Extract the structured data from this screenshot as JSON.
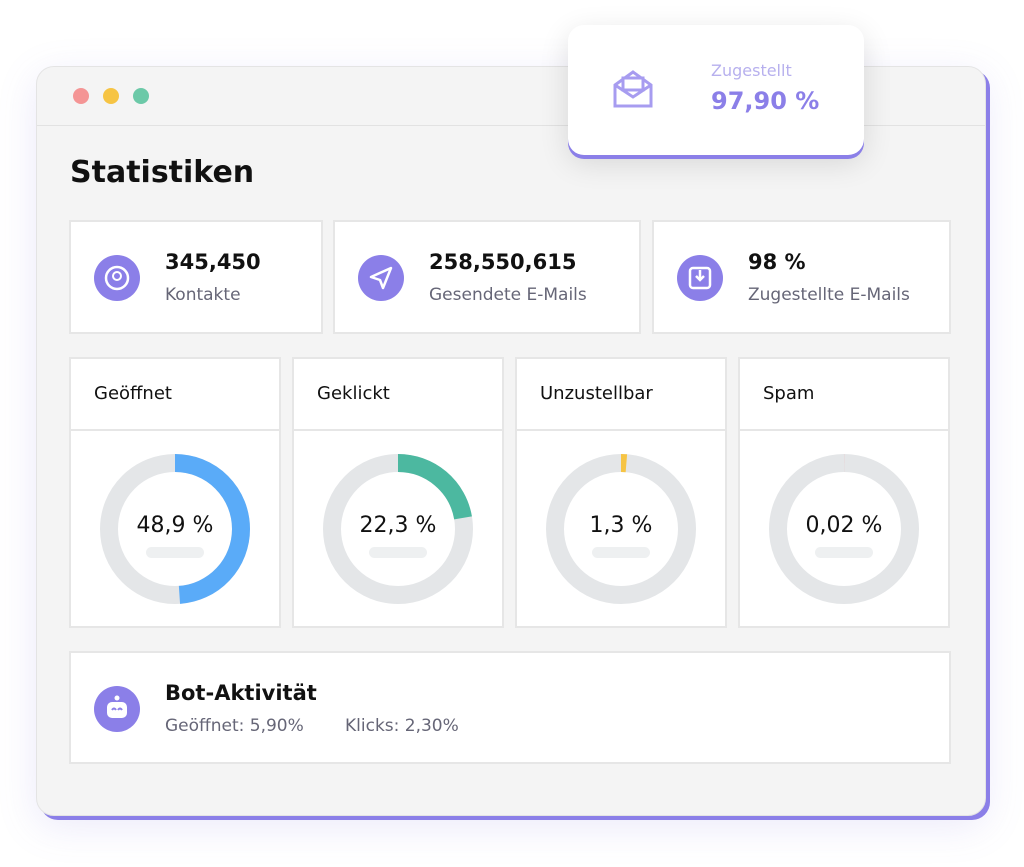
{
  "window": {
    "title": "Statistiken"
  },
  "popup": {
    "label": "Zugestellt",
    "value": "97,90 %"
  },
  "stats": [
    {
      "value": "345,450",
      "label": "Kontakte"
    },
    {
      "value": "258,550,615",
      "label": "Gesendete E-Mails"
    },
    {
      "value": "98 %",
      "label": "Zugestellte E-Mails"
    }
  ],
  "donuts": [
    {
      "title": "Geöffnet",
      "value": 48.9,
      "value_label": "48,9 %",
      "color": "#5aabf8"
    },
    {
      "title": "Geklickt",
      "value": 22.3,
      "value_label": "22,3 %",
      "color": "#4cb8a0"
    },
    {
      "title": "Unzustellbar",
      "value": 1.3,
      "value_label": "1,3 %",
      "color": "#f6c444"
    },
    {
      "title": "Spam",
      "value": 0.02,
      "value_label": "0,02 %",
      "color": "#f08a8a"
    }
  ],
  "bot": {
    "title": "Bot-Aktivität",
    "items": [
      "Geöffnet: 5,90%",
      "Klicks: 2,30%"
    ]
  }
}
